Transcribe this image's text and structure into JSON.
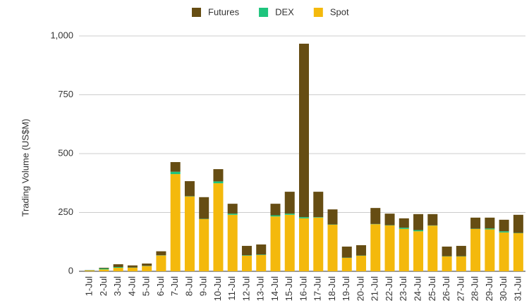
{
  "chart_data": {
    "type": "stacked-bar",
    "y_label": "Trading Volume (US$M)",
    "categories": [
      "1-Jul",
      "2-Jul",
      "3-Jul",
      "4-Jul",
      "5-Jul",
      "6-Jul",
      "7-Jul",
      "8-Jul",
      "9-Jul",
      "10-Jul",
      "11-Jul",
      "12-Jul",
      "13-Jul",
      "14-Jul",
      "15-Jul",
      "16-Jul",
      "17-Jul",
      "18-Jul",
      "19-Jul",
      "20-Jul",
      "21-Jul",
      "22-Jul",
      "23-Jul",
      "24-Jul",
      "25-Jul",
      "26-Jul",
      "27-Jul",
      "28-Jul",
      "29-Jul",
      "30-Jul",
      "31-Jul"
    ],
    "series": [
      {
        "name": "Spot",
        "color": "#f4b90c",
        "values": [
          3,
          8,
          15,
          15,
          22,
          67,
          413,
          318,
          222,
          374,
          240,
          66,
          69,
          233,
          240,
          225,
          228,
          198,
          57,
          66,
          200,
          195,
          180,
          170,
          194,
          63,
          63,
          180,
          178,
          165,
          162
        ]
      },
      {
        "name": "DEX",
        "color": "#1ec47d",
        "values": [
          1,
          4,
          3,
          1,
          1,
          1,
          10,
          1,
          1,
          8,
          5,
          2,
          2,
          5,
          5,
          5,
          2,
          1,
          1,
          1,
          1,
          1,
          5,
          5,
          1,
          1,
          1,
          1,
          4,
          5,
          1
        ]
      },
      {
        "name": "Futures",
        "color": "#664d13",
        "values": [
          1,
          3,
          12,
          9,
          10,
          17,
          41,
          64,
          92,
          52,
          42,
          40,
          43,
          49,
          93,
          737,
          108,
          64,
          47,
          44,
          68,
          49,
          40,
          68,
          48,
          41,
          44,
          47,
          46,
          49,
          77
        ]
      }
    ],
    "ylim": [
      0,
      1000
    ],
    "yticks": [
      0,
      250,
      500,
      750,
      {
        "value": 1000,
        "label": "1,000"
      }
    ],
    "grid": true
  }
}
